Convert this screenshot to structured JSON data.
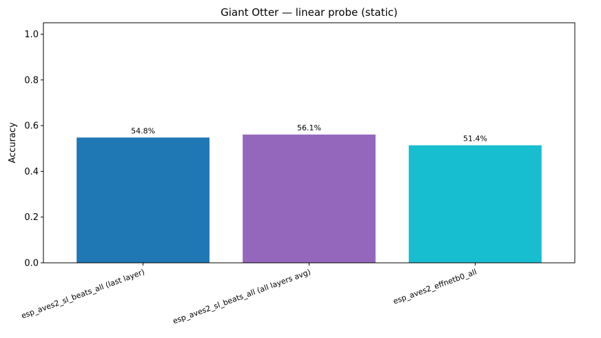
{
  "chart_data": {
    "type": "bar",
    "title": "Giant Otter — linear probe (static)",
    "ylabel": "Accuracy",
    "xlabel": "",
    "ylim": [
      0,
      1.05
    ],
    "yticks": [
      0.0,
      0.2,
      0.4,
      0.6,
      0.8,
      1.0
    ],
    "ytick_labels": [
      "0.0",
      "0.2",
      "0.4",
      "0.6",
      "0.8",
      "1.0"
    ],
    "categories": [
      "esp_aves2_sl_beats_all (last layer)",
      "esp_aves2_sl_beats_all (all layers avg)",
      "esp_aves2_effnetb0_all"
    ],
    "values": [
      0.548,
      0.561,
      0.514
    ],
    "value_labels": [
      "54.8%",
      "56.1%",
      "51.4%"
    ],
    "colors": [
      "#1f77b4",
      "#9467bd",
      "#17becf"
    ],
    "grid": false,
    "legend": "none"
  }
}
